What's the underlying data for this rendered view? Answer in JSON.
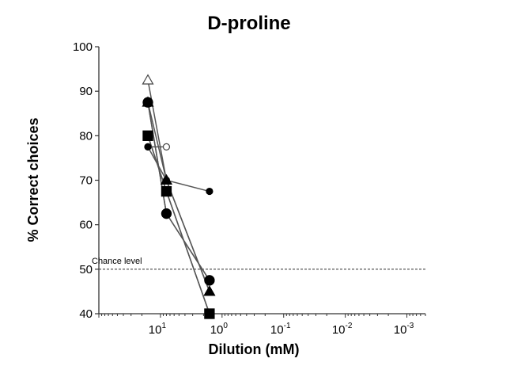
{
  "chart_data": {
    "type": "line",
    "title": "D-proline",
    "xlabel": "Dilution (mM)",
    "ylabel": "% Correct choices",
    "x_scale": "log-reversed",
    "xlim": [
      100,
      0.0005
    ],
    "x_ticks": [
      {
        "value": 10,
        "base": "10",
        "exp": "1"
      },
      {
        "value": 1,
        "base": "10",
        "exp": "0"
      },
      {
        "value": 0.1,
        "base": "10",
        "exp": "-1"
      },
      {
        "value": 0.01,
        "base": "10",
        "exp": "-2"
      },
      {
        "value": 0.001,
        "base": "10",
        "exp": "-3"
      }
    ],
    "ylim": [
      40,
      100
    ],
    "y_ticks": [
      "40",
      "50",
      "60",
      "70",
      "80",
      "90",
      "100"
    ],
    "grid": false,
    "legend": "none",
    "reference_line": {
      "label": "Chance level",
      "y": 50,
      "style": "dashed"
    },
    "series": [
      {
        "marker": "triangle-open",
        "size": "large",
        "x": [
          16,
          8,
          1.6
        ],
        "y": [
          92.5,
          70,
          45
        ]
      },
      {
        "marker": "circle-open",
        "size": "large",
        "x": [
          16,
          8,
          1.6
        ],
        "y": [
          87.5,
          62.5,
          47.5
        ]
      },
      {
        "marker": "square-open",
        "size": "large",
        "x": [
          16,
          8,
          1.6
        ],
        "y": [
          80,
          67.5,
          40
        ]
      },
      {
        "marker": "circle-open",
        "size": "small",
        "x": [
          16,
          8
        ],
        "y": [
          77.5,
          77.5
        ]
      },
      {
        "marker": "triangle-filled",
        "size": "large",
        "x": [
          16,
          8,
          1.6
        ],
        "y": [
          87.5,
          70,
          45
        ]
      },
      {
        "marker": "circle-filled",
        "size": "large",
        "x": [
          16,
          8,
          1.6
        ],
        "y": [
          87.5,
          62.5,
          47.5
        ]
      },
      {
        "marker": "square-filled",
        "size": "large",
        "x": [
          16,
          8,
          1.6
        ],
        "y": [
          80,
          67.5,
          40
        ]
      },
      {
        "marker": "circle-filled",
        "size": "small",
        "x": [
          16,
          8,
          1.6
        ],
        "y": [
          77.5,
          70,
          67.5
        ]
      }
    ],
    "colors": {
      "line": "#555555",
      "marker": "#000000",
      "axis": "#333333",
      "background": "#ffffff"
    }
  }
}
